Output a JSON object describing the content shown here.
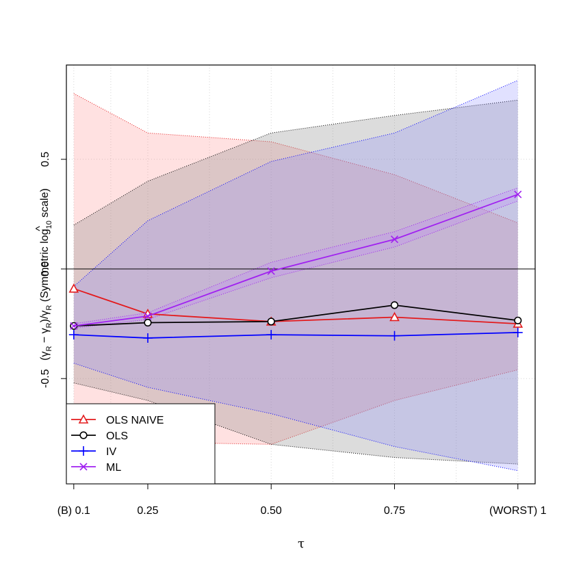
{
  "chart_data": {
    "type": "line",
    "x": [
      0.1,
      0.25,
      0.5,
      0.75,
      1.0
    ],
    "x_tick_labels": [
      "(B) 0.1",
      "0.25",
      "0.50",
      "0.75",
      "(WORST) 1"
    ],
    "y_ticks": [
      -0.5,
      0.0,
      0.5
    ],
    "y_tick_labels": [
      "-0.5",
      "0.0",
      "0.5"
    ],
    "xlabel": "τ",
    "ylabel": {
      "open": "(",
      "gamma": "γ",
      "hat": "^",
      "sub": "R",
      "minus": " − ",
      "close": ")/",
      "paren": " (Symmetric log",
      "log_sub": "10",
      "tail": " scale)"
    },
    "xlim": [
      0.085,
      1.035
    ],
    "ylim": [
      -0.98,
      0.93
    ],
    "hline": 0,
    "grid": true,
    "legend_position": "bottom-left",
    "series": [
      {
        "name": "OLS NAIVE",
        "color": "#e31a1c",
        "band_color": "#ff8080",
        "marker": "triangle",
        "values": [
          -0.09,
          -0.205,
          -0.24,
          -0.22,
          -0.25
        ],
        "band_upper": [
          0.8,
          0.62,
          0.58,
          0.43,
          0.21
        ],
        "band_lower": [
          -0.8,
          -0.79,
          -0.8,
          -0.6,
          -0.46
        ]
      },
      {
        "name": "OLS",
        "color": "#000000",
        "band_color": "#808080",
        "marker": "circle",
        "values": [
          -0.26,
          -0.245,
          -0.24,
          -0.165,
          -0.235
        ],
        "band_upper": [
          0.2,
          0.4,
          0.62,
          0.7,
          0.77
        ],
        "band_lower": [
          -0.52,
          -0.6,
          -0.8,
          -0.86,
          -0.89
        ]
      },
      {
        "name": "IV",
        "color": "#0000ff",
        "band_color": "#8080ff",
        "marker": "plus",
        "values": [
          -0.3,
          -0.315,
          -0.3,
          -0.305,
          -0.29
        ],
        "band_upper": [
          -0.08,
          0.22,
          0.49,
          0.62,
          0.86
        ],
        "band_lower": [
          -0.43,
          -0.54,
          -0.66,
          -0.81,
          -0.92
        ]
      },
      {
        "name": "ML",
        "color": "#a020f0",
        "band_color": "#c080ff",
        "marker": "cross",
        "values": [
          -0.26,
          -0.215,
          -0.01,
          0.135,
          0.34
        ],
        "band_upper": [
          -0.25,
          -0.2,
          0.03,
          0.17,
          0.37
        ],
        "band_lower": [
          -0.27,
          -0.23,
          -0.04,
          0.1,
          0.31
        ]
      }
    ]
  }
}
